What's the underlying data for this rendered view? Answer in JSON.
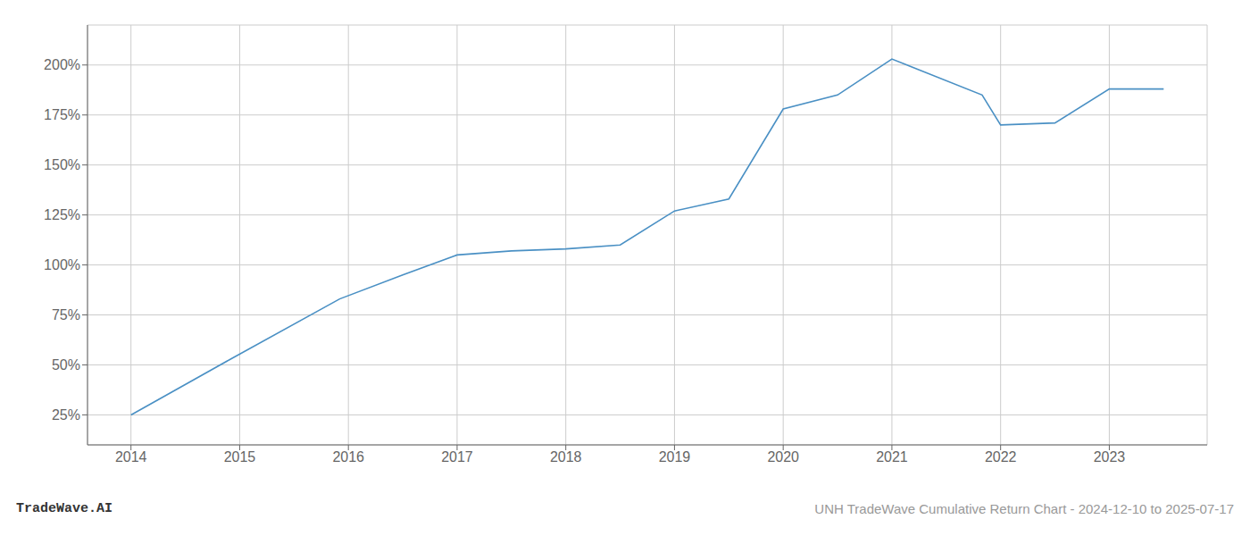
{
  "chart_data": {
    "type": "line",
    "annotations": [
      "TradeWave.AI",
      "UNH TradeWave Cumulative Return Chart - 2024-12-10 to 2025-07-17"
    ],
    "x": [
      2014.0,
      2014.92,
      2015.92,
      2016.5,
      2017.0,
      2017.5,
      2018.0,
      2018.5,
      2019.0,
      2019.5,
      2020.0,
      2020.5,
      2021.0,
      2021.83,
      2022.0,
      2022.5,
      2023.0,
      2023.5
    ],
    "values": [
      25,
      53,
      83,
      95,
      105,
      107,
      108,
      110,
      127,
      133,
      178,
      185,
      203,
      185,
      170,
      171,
      188,
      188
    ],
    "color": "#4a90c4",
    "xlim": [
      2013.6,
      2023.9
    ],
    "ylim": [
      10,
      220
    ],
    "xticks": [
      2014,
      2015,
      2016,
      2017,
      2018,
      2019,
      2020,
      2021,
      2022,
      2023
    ],
    "yticks": [
      {
        "value": 25,
        "label": "25%"
      },
      {
        "value": 50,
        "label": "50%"
      },
      {
        "value": 75,
        "label": "75%"
      },
      {
        "value": 100,
        "label": "100%"
      },
      {
        "value": 125,
        "label": "125%"
      },
      {
        "value": 150,
        "label": "150%"
      },
      {
        "value": 175,
        "label": "175%"
      },
      {
        "value": 200,
        "label": "200%"
      }
    ],
    "grid": true
  }
}
